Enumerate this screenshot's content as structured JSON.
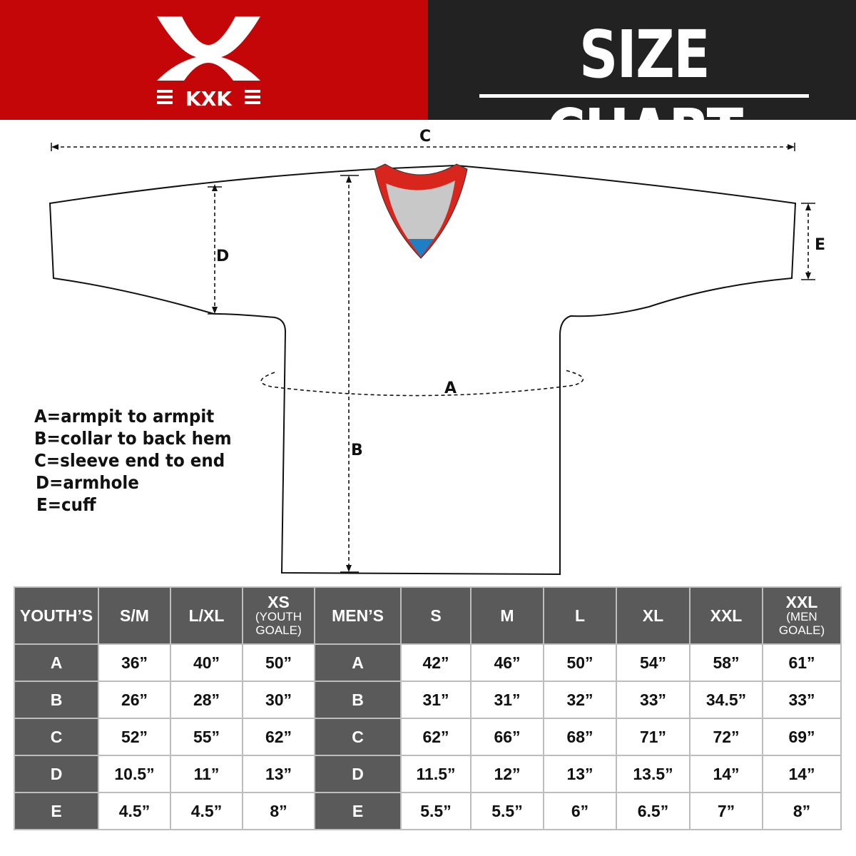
{
  "brand": {
    "logo_text": "KXK",
    "color_red": "#c50608",
    "color_dark": "#222222"
  },
  "header": {
    "title": "SIZE CHART"
  },
  "diagram": {
    "labels": {
      "A": "A",
      "B": "B",
      "C": "C",
      "D": "D",
      "E": "E"
    },
    "collar_colors": {
      "trim": "#d9261c",
      "inner": "#c8c8c8",
      "tag": "#1e7fc4"
    }
  },
  "legend": [
    "A=armpit to armpit",
    "B=collar to back hem",
    "C=sleeve end to end",
    "D=armhole",
    "E=cuff"
  ],
  "table": {
    "headers": [
      {
        "main": "YOUTH’S",
        "sub": ""
      },
      {
        "main": "S/M",
        "sub": ""
      },
      {
        "main": "L/XL",
        "sub": ""
      },
      {
        "main": "XS",
        "sub": "(YOUTH GOALE)"
      },
      {
        "main": "MEN’S",
        "sub": ""
      },
      {
        "main": "S",
        "sub": ""
      },
      {
        "main": "M",
        "sub": ""
      },
      {
        "main": "L",
        "sub": ""
      },
      {
        "main": "XL",
        "sub": ""
      },
      {
        "main": "XXL",
        "sub": ""
      },
      {
        "main": "XXL",
        "sub": "(MEN GOALE)"
      }
    ],
    "rows": [
      {
        "youth_label": "A",
        "youth": [
          "36”",
          "40”",
          "50”"
        ],
        "men_label": "A",
        "men": [
          "42”",
          "46”",
          "50”",
          "54”",
          "58”",
          "61”"
        ]
      },
      {
        "youth_label": "B",
        "youth": [
          "26”",
          "28”",
          "30”"
        ],
        "men_label": "B",
        "men": [
          "31”",
          "31”",
          "32”",
          "33”",
          "34.5”",
          "33”"
        ]
      },
      {
        "youth_label": "C",
        "youth": [
          "52”",
          "55”",
          "62”"
        ],
        "men_label": "C",
        "men": [
          "62”",
          "66”",
          "68”",
          "71”",
          "72”",
          "69”"
        ]
      },
      {
        "youth_label": "D",
        "youth": [
          "10.5”",
          "11”",
          "13”"
        ],
        "men_label": "D",
        "men": [
          "11.5”",
          "12”",
          "13”",
          "13.5”",
          "14”",
          "14”"
        ]
      },
      {
        "youth_label": "E",
        "youth": [
          "4.5”",
          "4.5”",
          "8”"
        ],
        "men_label": "E",
        "men": [
          "5.5”",
          "5.5”",
          "6”",
          "6.5”",
          "7”",
          "8”"
        ]
      }
    ]
  }
}
